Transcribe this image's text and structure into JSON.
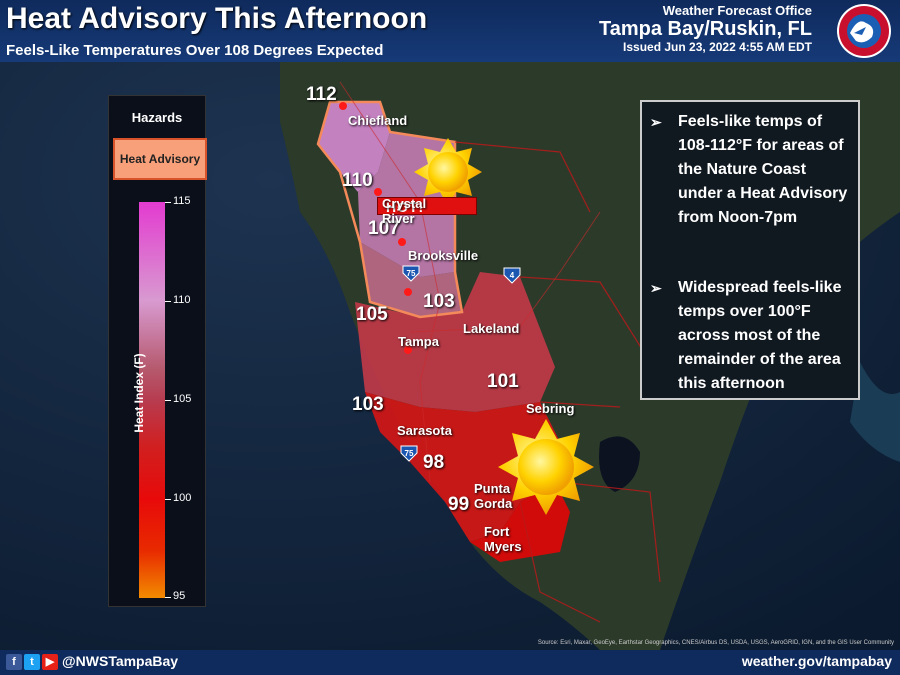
{
  "header": {
    "title": "Heat Advisory This Afternoon",
    "subtitle": "Feels-Like Temperatures Over 108 Degrees Expected",
    "office_line1": "Weather Forecast Office",
    "office_line2": "Tampa Bay/Ruskin, FL",
    "issued": "Issued Jun 23, 2022 4:55 AM EDT",
    "logo_text": "NATIONAL WEATHER SERVICE"
  },
  "legend": {
    "title": "Hazards",
    "hazard": "Heat Advisory",
    "hazard_color": "#f7a07a",
    "scale_label": "Heat Index (F)",
    "ticks": [
      "115",
      "110",
      "105",
      "100",
      "95"
    ]
  },
  "textbox": {
    "bullet1": "Feels-like temps of 108-112°F for areas of the Nature Coast under a Heat Advisory from Noon-7pm",
    "bullet2": "Widespread feels-like temps over 100°F across most of the remainder of the area this afternoon"
  },
  "map": {
    "hot_label": "HOT!",
    "values": [
      "112",
      "110",
      "107",
      "105",
      "103",
      "103",
      "101",
      "98",
      "99"
    ],
    "cities": [
      "Chiefland",
      "Crystal River",
      "Brooksville",
      "Tampa",
      "Lakeland",
      "Sebring",
      "Sarasota",
      "Punta Gorda",
      "Fort Myers"
    ],
    "interstates": [
      "75",
      "4",
      "75"
    ],
    "source": "Source: Esri, Maxar, GeoEye, Earthstar Geographics, CNES/Airbus DS, USDA, USGS, AeroGRID, IGN, and the GIS User Community"
  },
  "footer": {
    "handle": "@NWSTampaBay",
    "website": "weather.gov/tampabay",
    "social_icons": [
      "facebook-icon",
      "twitter-icon",
      "youtube-icon"
    ]
  }
}
